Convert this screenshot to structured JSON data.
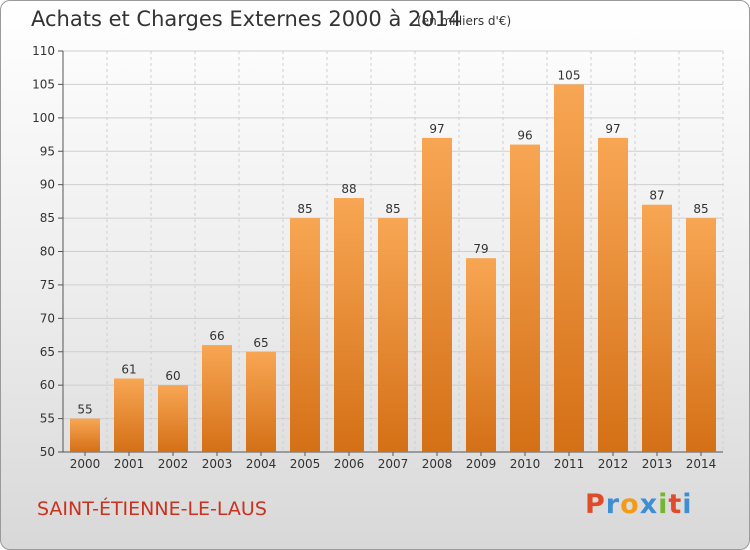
{
  "header": {
    "title": "Achats et Charges Externes 2000 à 2014",
    "unit": "(en milliers d'€)"
  },
  "footer": {
    "commune": "SAINT-ÉTIENNE-LE-LAUS",
    "logo": "Proxiti"
  },
  "colors": {
    "bar_light": "#f8a654",
    "bar_dark": "#d47016",
    "grid": "#cfcfcf",
    "axis": "#555555",
    "commune_text": "#c8321e",
    "logo_letters": [
      "#e04b2a",
      "#3d8fd1",
      "#f29b1b",
      "#3d8fd1",
      "#72b72e",
      "#e04b2a",
      "#3d8fd1"
    ]
  },
  "chart_data": {
    "type": "bar",
    "title": "Achats et Charges Externes 2000 à 2014",
    "subtitle": "(en milliers d'€)",
    "xlabel": "",
    "ylabel": "",
    "categories": [
      "2000",
      "2001",
      "2002",
      "2003",
      "2004",
      "2005",
      "2006",
      "2007",
      "2008",
      "2009",
      "2010",
      "2011",
      "2012",
      "2013",
      "2014"
    ],
    "values": [
      55,
      61,
      60,
      66,
      65,
      85,
      88,
      85,
      97,
      79,
      96,
      105,
      97,
      87,
      85
    ],
    "ylim": [
      50,
      110
    ],
    "yticks": [
      50,
      55,
      60,
      65,
      70,
      75,
      80,
      85,
      90,
      95,
      100,
      105,
      110
    ],
    "grid": true,
    "data_labels": true
  }
}
